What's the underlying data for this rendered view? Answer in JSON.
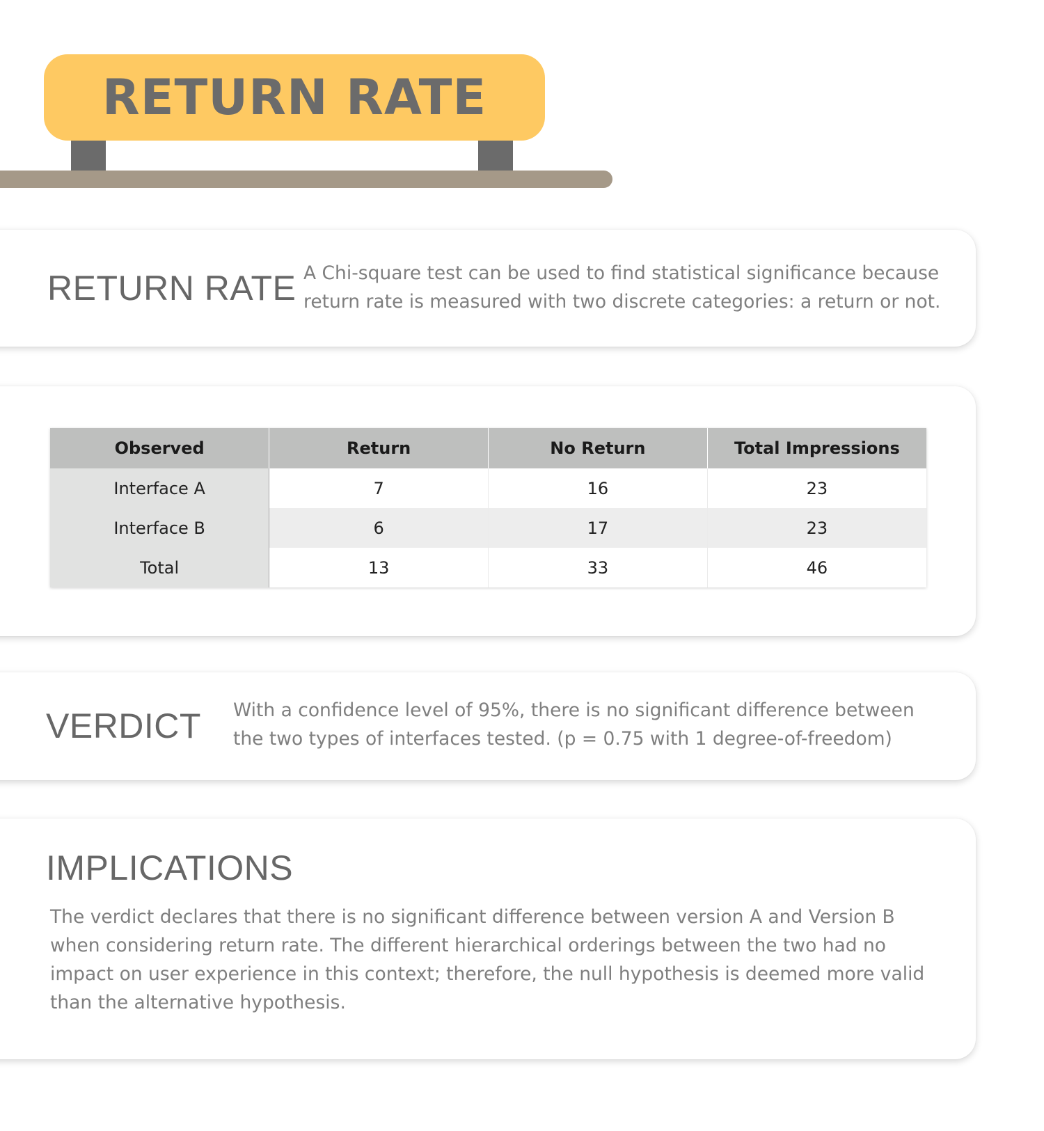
{
  "sign": {
    "title": "RETURN RATE"
  },
  "intro": {
    "heading": "RETURN RATE",
    "text": "A Chi-square test can be used to find statistical significance because return rate is measured with two discrete categories: a return or not."
  },
  "table": {
    "headers": [
      "Observed",
      "Return",
      "No Return",
      "Total Impressions"
    ],
    "rows": [
      [
        "Interface A",
        "7",
        "16",
        "23"
      ],
      [
        "Interface B",
        "6",
        "17",
        "23"
      ],
      [
        "Total",
        "13",
        "33",
        "46"
      ]
    ]
  },
  "verdict": {
    "heading": "VERDICT",
    "text": "With a confidence level of 95%, there is no significant difference between the two types of interfaces tested. (p = 0.75 with 1 degree-of-freedom)"
  },
  "implications": {
    "heading": "IMPLICATIONS",
    "text": "The verdict declares that there is no significant difference between version A and Version B when considering return rate. The different hierarchical orderings between the two had no impact on user experience in this context; therefore, the null hypothesis is deemed more valid than the alternative hypothesis."
  },
  "colors": {
    "sign": "#fec962",
    "post": "#6b6b6b",
    "ground": "#a59988",
    "heading": "#676767",
    "body_text": "#7f7f7f",
    "table_header": "#bebfbe"
  }
}
